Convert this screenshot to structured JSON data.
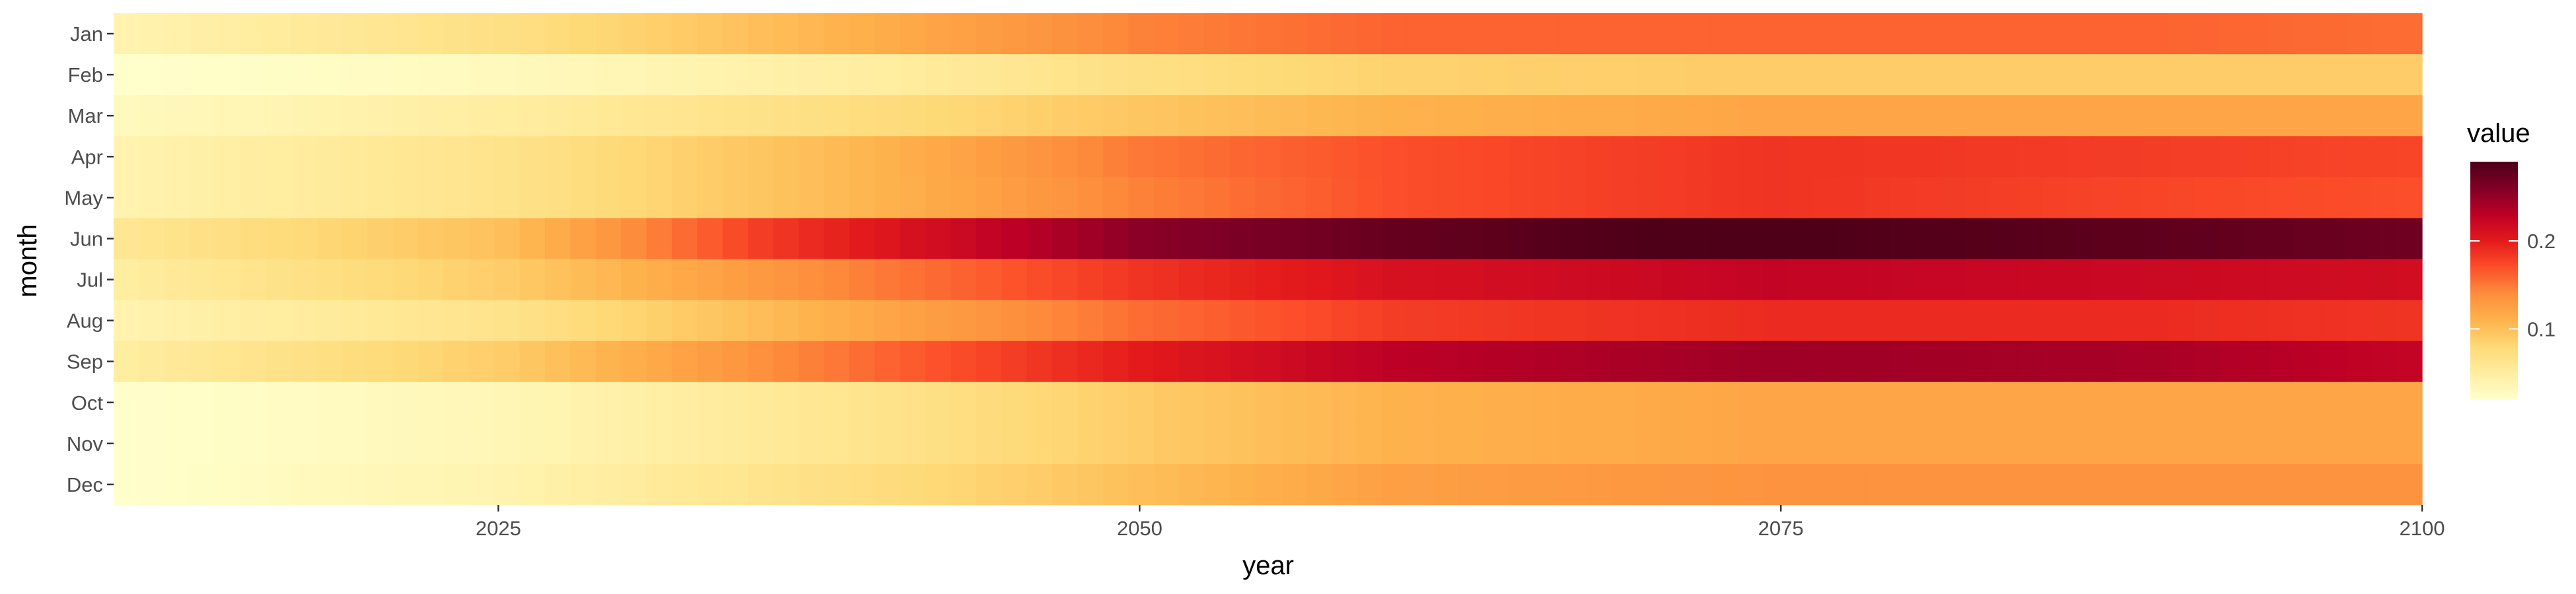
{
  "chart_data": {
    "type": "heatmap",
    "title": "",
    "xlabel": "year",
    "ylabel": "month",
    "x_range": [
      2010,
      2100
    ],
    "x_ticks": [
      "2025",
      "2050",
      "2075",
      "2100"
    ],
    "y_categories": [
      "Jan",
      "Feb",
      "Mar",
      "Apr",
      "May",
      "Jun",
      "Jul",
      "Aug",
      "Sep",
      "Oct",
      "Nov",
      "Dec"
    ],
    "value_range": [
      0.02,
      0.29
    ],
    "colorscale": [
      "#ffffcc",
      "#ffeda0",
      "#fed976",
      "#feb24c",
      "#fd8d3c",
      "#fc4e2a",
      "#e31a1c",
      "#bd0026",
      "#800026",
      "#4d0018"
    ],
    "grid": false,
    "legend": {
      "title": "value",
      "position": "right",
      "ticks": [
        "0.1",
        "0.2"
      ]
    },
    "series": [
      {
        "month": "Jan",
        "x": [
          2010,
          2025,
          2040,
          2050,
          2060,
          2075,
          2090,
          2100
        ],
        "values": [
          0.04,
          0.07,
          0.115,
          0.145,
          0.16,
          0.16,
          0.16,
          0.155
        ]
      },
      {
        "month": "Feb",
        "x": [
          2010,
          2025,
          2040,
          2050,
          2060,
          2075,
          2090,
          2100
        ],
        "values": [
          0.02,
          0.03,
          0.05,
          0.07,
          0.085,
          0.09,
          0.09,
          0.09
        ]
      },
      {
        "month": "Mar",
        "x": [
          2010,
          2025,
          2040,
          2050,
          2060,
          2075,
          2090,
          2100
        ],
        "values": [
          0.03,
          0.05,
          0.075,
          0.095,
          0.11,
          0.12,
          0.12,
          0.12
        ]
      },
      {
        "month": "Apr",
        "x": [
          2010,
          2025,
          2040,
          2050,
          2060,
          2075,
          2090,
          2100
        ],
        "values": [
          0.04,
          0.065,
          0.11,
          0.15,
          0.17,
          0.185,
          0.18,
          0.175
        ]
      },
      {
        "month": "May",
        "x": [
          2010,
          2025,
          2040,
          2050,
          2060,
          2075,
          2090,
          2100
        ],
        "values": [
          0.04,
          0.065,
          0.11,
          0.145,
          0.17,
          0.185,
          0.175,
          0.17
        ]
      },
      {
        "month": "Jun",
        "x": [
          2010,
          2025,
          2035,
          2045,
          2050,
          2060,
          2070,
          2075,
          2090,
          2100
        ],
        "values": [
          0.06,
          0.1,
          0.18,
          0.23,
          0.255,
          0.275,
          0.29,
          0.29,
          0.28,
          0.27
        ]
      },
      {
        "month": "Jul",
        "x": [
          2010,
          2025,
          2040,
          2050,
          2060,
          2075,
          2090,
          2100
        ],
        "values": [
          0.05,
          0.09,
          0.15,
          0.185,
          0.21,
          0.225,
          0.22,
          0.215
        ]
      },
      {
        "month": "Aug",
        "x": [
          2010,
          2025,
          2040,
          2050,
          2060,
          2075,
          2090,
          2100
        ],
        "values": [
          0.04,
          0.065,
          0.12,
          0.155,
          0.18,
          0.19,
          0.19,
          0.185
        ]
      },
      {
        "month": "Sep",
        "x": [
          2010,
          2025,
          2040,
          2050,
          2060,
          2075,
          2090,
          2100
        ],
        "values": [
          0.05,
          0.09,
          0.16,
          0.2,
          0.23,
          0.245,
          0.24,
          0.225
        ]
      },
      {
        "month": "Oct",
        "x": [
          2010,
          2025,
          2040,
          2050,
          2060,
          2075,
          2090,
          2100
        ],
        "values": [
          0.02,
          0.035,
          0.065,
          0.09,
          0.11,
          0.12,
          0.12,
          0.12
        ]
      },
      {
        "month": "Nov",
        "x": [
          2010,
          2025,
          2040,
          2050,
          2060,
          2075,
          2090,
          2100
        ],
        "values": [
          0.02,
          0.035,
          0.065,
          0.09,
          0.11,
          0.12,
          0.12,
          0.12
        ]
      },
      {
        "month": "Dec",
        "x": [
          2010,
          2025,
          2040,
          2050,
          2060,
          2075,
          2090,
          2100
        ],
        "values": [
          0.02,
          0.04,
          0.075,
          0.1,
          0.125,
          0.135,
          0.135,
          0.135
        ]
      }
    ]
  }
}
